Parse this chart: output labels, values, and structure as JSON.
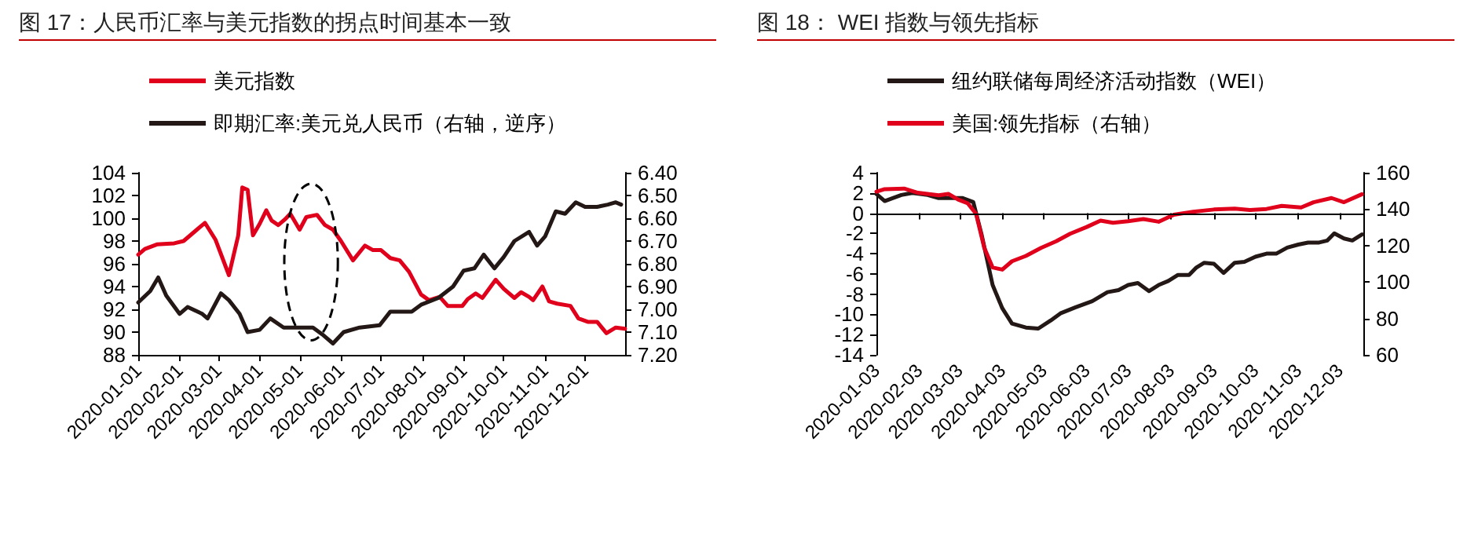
{
  "chart_data": [
    {
      "type": "line",
      "title": "图 17：人民币汇率与美元指数的拐点时间基本一致",
      "legend": "top",
      "grid": false,
      "marker": "none",
      "line_style": "solid",
      "xlim": [
        "2020-01-01",
        "2020-12-31"
      ],
      "xticks": [
        "2020-01-01",
        "2020-02-01",
        "2020-03-01",
        "2020-04-01",
        "2020-05-01",
        "2020-06-01",
        "2020-07-01",
        "2020-08-01",
        "2020-09-01",
        "2020-10-01",
        "2020-11-01",
        "2020-12-01"
      ],
      "ylim": [
        88,
        104
      ],
      "yticks": [
        88,
        90,
        92,
        94,
        96,
        98,
        100,
        102,
        104
      ],
      "y2lim": [
        7.2,
        6.4
      ],
      "y2ticks": [
        {
          "value": 6.4,
          "label": "6.40"
        },
        {
          "value": 6.5,
          "label": "6.50"
        },
        {
          "value": 6.6,
          "label": "6.60"
        },
        {
          "value": 6.7,
          "label": "6.70"
        },
        {
          "value": 6.8,
          "label": "6.80"
        },
        {
          "value": 6.9,
          "label": "6.90"
        },
        {
          "value": 7.0,
          "label": "7.00"
        },
        {
          "value": 7.1,
          "label": "7.10"
        },
        {
          "value": 7.2,
          "label": "7.20"
        }
      ],
      "series": [
        {
          "name": "美元指数",
          "color": "#e0001b",
          "x": [
            "2020-01-01",
            "2020-01-06",
            "2020-01-15",
            "2020-01-28",
            "2020-02-04",
            "2020-02-14",
            "2020-02-20",
            "2020-02-28",
            "2020-03-09",
            "2020-03-12",
            "2020-03-16",
            "2020-03-19",
            "2020-03-23",
            "2020-03-27",
            "2020-04-01",
            "2020-04-06",
            "2020-04-10",
            "2020-04-15",
            "2020-04-20",
            "2020-04-24",
            "2020-05-01",
            "2020-05-06",
            "2020-05-14",
            "2020-05-20",
            "2020-05-26",
            "2020-06-01",
            "2020-06-10",
            "2020-06-19",
            "2020-06-25",
            "2020-07-01",
            "2020-07-08",
            "2020-07-15",
            "2020-07-22",
            "2020-07-31",
            "2020-08-06",
            "2020-08-14",
            "2020-08-20",
            "2020-08-31",
            "2020-09-04",
            "2020-09-10",
            "2020-09-15",
            "2020-09-25",
            "2020-10-01",
            "2020-10-09",
            "2020-10-14",
            "2020-10-20",
            "2020-10-23",
            "2020-10-30",
            "2020-11-04",
            "2020-11-10",
            "2020-11-20",
            "2020-11-26",
            "2020-12-03",
            "2020-12-10",
            "2020-12-17",
            "2020-12-24",
            "2020-12-31"
          ],
          "values": [
            96.8,
            97.3,
            97.7,
            97.8,
            98.0,
            99.0,
            99.6,
            98.1,
            95.0,
            96.5,
            98.5,
            102.7,
            102.5,
            98.5,
            99.5,
            100.7,
            99.8,
            99.4,
            99.9,
            100.4,
            99.0,
            100.1,
            100.3,
            99.4,
            99.0,
            98.0,
            96.3,
            97.6,
            97.2,
            97.2,
            96.5,
            96.3,
            95.3,
            93.3,
            92.8,
            93.1,
            92.3,
            92.3,
            92.9,
            93.4,
            93.0,
            94.6,
            93.8,
            93.0,
            93.5,
            93.1,
            92.8,
            94.0,
            92.7,
            92.5,
            92.3,
            91.2,
            90.9,
            90.9,
            89.9,
            90.4,
            90.3
          ]
        },
        {
          "name": "即期汇率:美元兑人民币（右轴，逆序）",
          "color": "#231815",
          "axis": "y2",
          "x": [
            "2020-01-01",
            "2020-01-10",
            "2020-01-16",
            "2020-01-22",
            "2020-02-01",
            "2020-02-07",
            "2020-02-18",
            "2020-02-22",
            "2020-03-03",
            "2020-03-09",
            "2020-03-17",
            "2020-03-23",
            "2020-04-01",
            "2020-04-09",
            "2020-04-19",
            "2020-05-01",
            "2020-05-11",
            "2020-05-18",
            "2020-05-26",
            "2020-06-03",
            "2020-06-15",
            "2020-06-30",
            "2020-07-08",
            "2020-07-24",
            "2020-07-31",
            "2020-08-13",
            "2020-08-24",
            "2020-09-01",
            "2020-09-09",
            "2020-09-16",
            "2020-09-24",
            "2020-10-01",
            "2020-10-09",
            "2020-10-20",
            "2020-10-26",
            "2020-11-01",
            "2020-11-09",
            "2020-11-16",
            "2020-11-24",
            "2020-12-01",
            "2020-12-10",
            "2020-12-18",
            "2020-12-24",
            "2020-12-28"
          ],
          "values": [
            6.97,
            6.92,
            6.86,
            6.94,
            7.02,
            6.99,
            7.02,
            7.04,
            6.93,
            6.96,
            7.02,
            7.1,
            7.09,
            7.04,
            7.08,
            7.08,
            7.08,
            7.11,
            7.15,
            7.1,
            7.08,
            7.07,
            7.01,
            7.01,
            6.98,
            6.95,
            6.9,
            6.83,
            6.82,
            6.76,
            6.82,
            6.77,
            6.7,
            6.66,
            6.72,
            6.68,
            6.57,
            6.58,
            6.53,
            6.55,
            6.55,
            6.54,
            6.53,
            6.54
          ]
        }
      ]
    },
    {
      "type": "line",
      "title": "图 18： WEI 指数与领先指标",
      "legend": "top",
      "grid": false,
      "marker": "none",
      "line_style": "solid",
      "xlim": [
        "2020-01-03",
        "2020-12-20"
      ],
      "xticks": [
        "2020-01-03",
        "2020-02-03",
        "2020-03-03",
        "2020-04-03",
        "2020-05-03",
        "2020-06-03",
        "2020-07-03",
        "2020-08-03",
        "2020-09-03",
        "2020-10-03",
        "2020-11-03",
        "2020-12-03"
      ],
      "ylim": [
        -14,
        4
      ],
      "yticks": [
        -14,
        -12,
        -10,
        -8,
        -6,
        -4,
        -2,
        0,
        2,
        4
      ],
      "y2lim": [
        60,
        160
      ],
      "y2ticks": [
        60,
        80,
        100,
        120,
        140,
        160
      ],
      "ref_lines": [
        {
          "axis": "y",
          "value": 0,
          "color": "#000000"
        }
      ],
      "series": [
        {
          "name": "纽约联储每周经济活动指数（WEI）",
          "color": "#231815",
          "x": [
            "2020-01-03",
            "2020-01-09",
            "2020-01-21",
            "2020-01-29",
            "2020-02-09",
            "2020-02-17",
            "2020-02-28",
            "2020-03-05",
            "2020-03-13",
            "2020-03-19",
            "2020-03-27",
            "2020-04-03",
            "2020-04-10",
            "2020-04-20",
            "2020-04-29",
            "2020-05-08",
            "2020-05-15",
            "2020-05-26",
            "2020-06-07",
            "2020-06-18",
            "2020-06-26",
            "2020-07-03",
            "2020-07-10",
            "2020-07-18",
            "2020-07-25",
            "2020-08-01",
            "2020-08-08",
            "2020-08-16",
            "2020-08-21",
            "2020-08-27",
            "2020-09-03",
            "2020-09-10",
            "2020-09-18",
            "2020-09-25",
            "2020-10-03",
            "2020-10-11",
            "2020-10-18",
            "2020-10-26",
            "2020-11-03",
            "2020-11-10",
            "2020-11-18",
            "2020-11-24",
            "2020-11-29",
            "2020-12-06",
            "2020-12-12",
            "2020-12-19"
          ],
          "values": [
            1.9,
            1.2,
            1.8,
            2.0,
            1.8,
            1.5,
            1.5,
            1.5,
            1.1,
            -2.1,
            -7.1,
            -9.4,
            -10.9,
            -11.3,
            -11.4,
            -10.6,
            -9.9,
            -9.3,
            -8.7,
            -7.8,
            -7.6,
            -7.1,
            -6.9,
            -7.7,
            -7.1,
            -6.7,
            -6.1,
            -6.1,
            -5.4,
            -4.9,
            -5.0,
            -5.9,
            -4.9,
            -4.8,
            -4.3,
            -4.0,
            -4.0,
            -3.4,
            -3.1,
            -2.9,
            -2.9,
            -2.7,
            -2.0,
            -2.5,
            -2.7,
            -2.1
          ]
        },
        {
          "name": "美国:领先指标（右轴）",
          "color": "#e0001b",
          "axis": "y2",
          "x": [
            "2020-01-03",
            "2020-01-09",
            "2020-01-23",
            "2020-02-02",
            "2020-02-17",
            "2020-02-24",
            "2020-03-02",
            "2020-03-09",
            "2020-03-15",
            "2020-03-21",
            "2020-03-27",
            "2020-04-03",
            "2020-04-10",
            "2020-04-20",
            "2020-05-01",
            "2020-05-12",
            "2020-05-22",
            "2020-06-03",
            "2020-06-13",
            "2020-06-22",
            "2020-07-03",
            "2020-07-14",
            "2020-07-25",
            "2020-08-05",
            "2020-08-19",
            "2020-09-03",
            "2020-09-18",
            "2020-09-29",
            "2020-10-11",
            "2020-10-22",
            "2020-11-05",
            "2020-11-14",
            "2020-11-27",
            "2020-12-06",
            "2020-12-19"
          ],
          "values": [
            149.6,
            151,
            151.3,
            149,
            147.6,
            148.4,
            145.3,
            143.2,
            137.5,
            118.7,
            108,
            106.8,
            111.4,
            114.3,
            118.7,
            122.4,
            126.5,
            130.2,
            133.7,
            132.5,
            133.4,
            134.6,
            133.1,
            136.9,
            138.6,
            139.8,
            140.3,
            139.5,
            140.1,
            141.8,
            140.9,
            143.8,
            146.1,
            143.8,
            148.2
          ]
        }
      ]
    }
  ]
}
